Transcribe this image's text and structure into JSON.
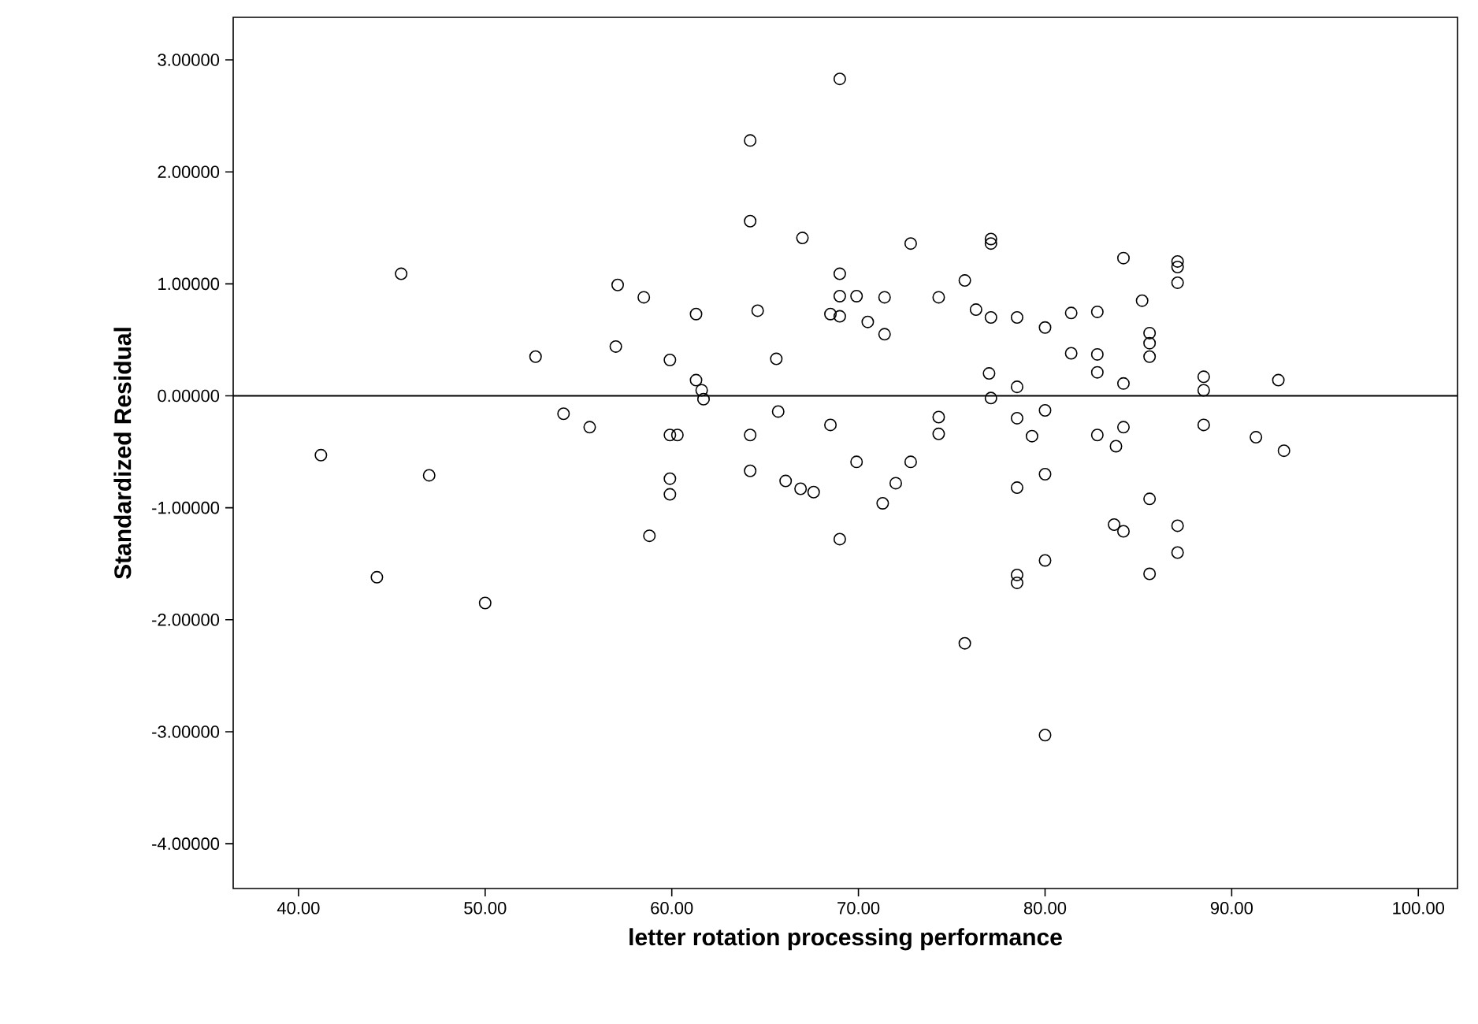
{
  "chart_data": {
    "type": "scatter",
    "xlabel": "letter rotation processing performance",
    "ylabel": "Standardized Residual",
    "marker": "circle",
    "grid": false,
    "xlim": [
      36.5,
      102.1
    ],
    "ylim": [
      -4.4,
      3.38
    ],
    "xticks": [
      {
        "value": 40,
        "label": "40.00"
      },
      {
        "value": 50,
        "label": "50.00"
      },
      {
        "value": 60,
        "label": "60.00"
      },
      {
        "value": 70,
        "label": "70.00"
      },
      {
        "value": 80,
        "label": "80.00"
      },
      {
        "value": 90,
        "label": "90.00"
      },
      {
        "value": 100,
        "label": "100.00"
      }
    ],
    "yticks": [
      {
        "value": -4,
        "label": "-4.00000"
      },
      {
        "value": -3,
        "label": "-3.00000"
      },
      {
        "value": -2,
        "label": "-2.00000"
      },
      {
        "value": -1,
        "label": "-1.00000"
      },
      {
        "value": 0,
        "label": "0.00000"
      },
      {
        "value": 1,
        "label": "1.00000"
      },
      {
        "value": 2,
        "label": "2.00000"
      },
      {
        "value": 3,
        "label": "3.00000"
      }
    ],
    "ref_lines": [
      {
        "axis": "y",
        "value": 0,
        "color": "#000000"
      }
    ],
    "series": [
      {
        "color": "#000000",
        "x": [
          69.0,
          64.2,
          64.2,
          67.0,
          45.5,
          69.0,
          57.1,
          58.5,
          61.3,
          64.6,
          69.0,
          68.5,
          69.0,
          52.7,
          57.0,
          59.9,
          65.6,
          61.3,
          61.6,
          61.7,
          54.2,
          55.6,
          59.9,
          60.3,
          64.2,
          65.7,
          68.5,
          41.2,
          47.0,
          59.9,
          59.9,
          64.2,
          66.1,
          66.9,
          67.6,
          72.8,
          77.1,
          77.1,
          69.9,
          71.4,
          70.5,
          71.4,
          74.3,
          75.7,
          76.3,
          77.1,
          78.5,
          80.0,
          81.4,
          82.8,
          84.2,
          85.2,
          87.1,
          87.1,
          87.1,
          85.6,
          85.6,
          85.6,
          81.4,
          82.8,
          82.8,
          77.0,
          78.5,
          84.2,
          88.5,
          88.5,
          92.5,
          77.1,
          74.3,
          74.3,
          78.5,
          80.0,
          79.3,
          82.8,
          84.2,
          83.8,
          88.5,
          91.3,
          92.8,
          69.9,
          72.8,
          72.0,
          71.3,
          78.5,
          80.0,
          85.6,
          58.8,
          69.0,
          44.2,
          50.0,
          83.7,
          84.2,
          87.1,
          87.1,
          80.0,
          78.5,
          78.5,
          85.6,
          75.7,
          80.0
        ],
        "values": [
          2.83,
          2.28,
          1.56,
          1.41,
          1.09,
          1.09,
          0.99,
          0.88,
          0.73,
          0.76,
          0.89,
          0.73,
          0.71,
          0.35,
          0.44,
          0.32,
          0.33,
          0.14,
          0.05,
          -0.03,
          -0.16,
          -0.28,
          -0.35,
          -0.35,
          -0.35,
          -0.14,
          -0.26,
          -0.53,
          -0.71,
          -0.74,
          -0.88,
          -0.67,
          -0.76,
          -0.83,
          -0.86,
          1.36,
          1.36,
          1.4,
          0.89,
          0.88,
          0.66,
          0.55,
          0.88,
          1.03,
          0.77,
          0.7,
          0.7,
          0.61,
          0.74,
          0.75,
          1.23,
          0.85,
          1.2,
          1.15,
          1.01,
          0.56,
          0.47,
          0.35,
          0.38,
          0.37,
          0.21,
          0.2,
          0.08,
          0.11,
          0.17,
          0.05,
          0.14,
          -0.02,
          -0.19,
          -0.34,
          -0.2,
          -0.13,
          -0.36,
          -0.35,
          -0.28,
          -0.45,
          -0.26,
          -0.37,
          -0.49,
          -0.59,
          -0.59,
          -0.78,
          -0.96,
          -0.82,
          -0.7,
          -0.92,
          -1.25,
          -1.28,
          -1.62,
          -1.85,
          -1.15,
          -1.21,
          -1.16,
          -1.4,
          -1.47,
          -1.6,
          -1.67,
          -1.59,
          -2.21,
          -3.03
        ]
      }
    ]
  }
}
